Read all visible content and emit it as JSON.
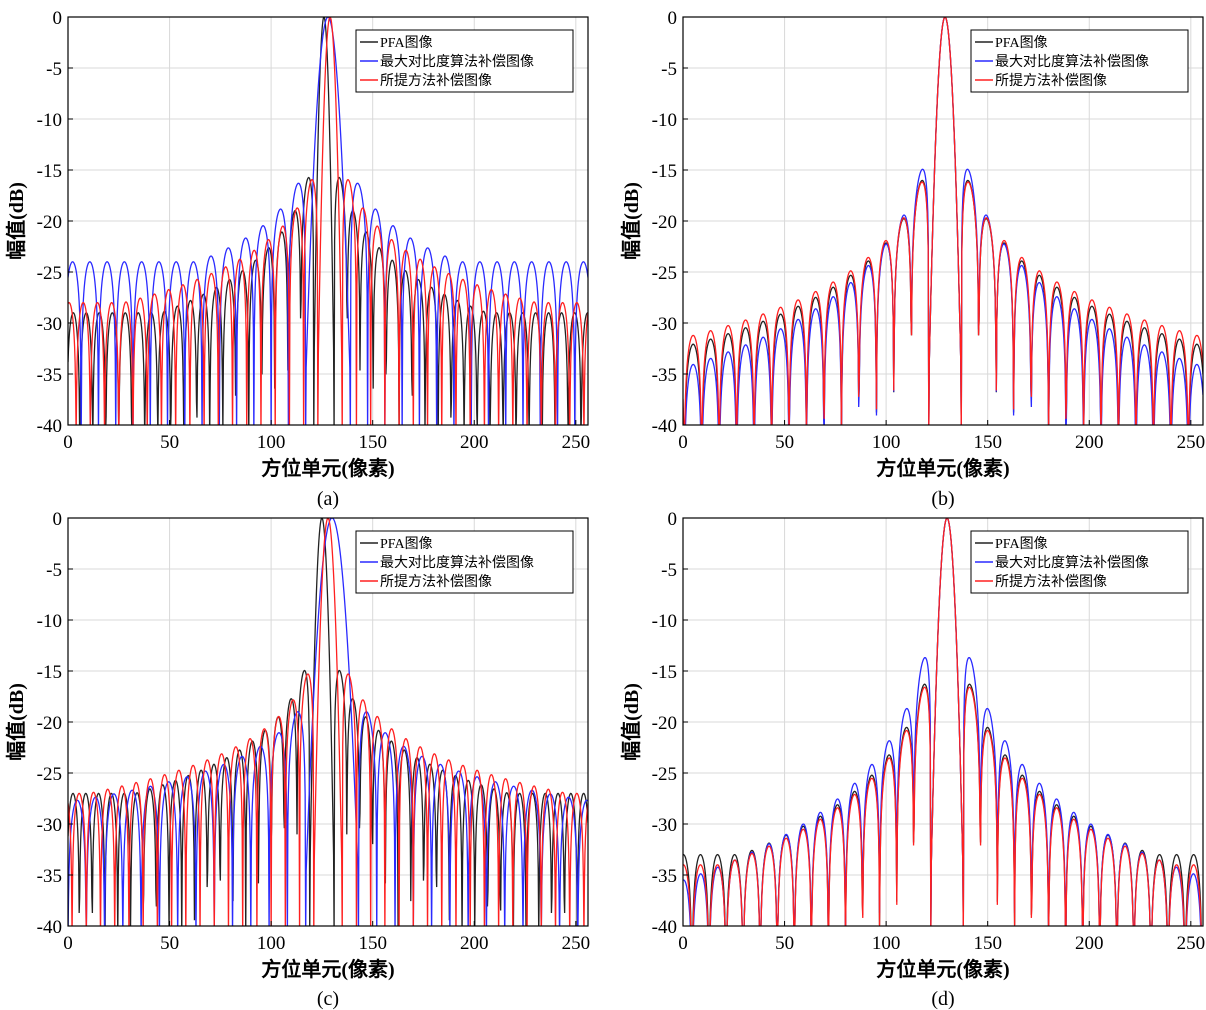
{
  "figure": {
    "panel_labels": [
      "(a)",
      "(b)",
      "(c)",
      "(d)"
    ]
  },
  "colors": {
    "pfa": "#222222",
    "max_contrast": "#2a2aff",
    "proposed": "#ff2020",
    "grid": "#d9d9d9",
    "axes": "#000000"
  },
  "chart_data": [
    {
      "type": "line",
      "panel": "(a)",
      "xlabel": "方位单元(像素)",
      "ylabel": "幅值(dB)",
      "xlim": [
        0,
        256
      ],
      "ylim": [
        -40,
        0
      ],
      "xticks": [
        0,
        50,
        100,
        150,
        200,
        250
      ],
      "yticks": [
        0,
        -5,
        -10,
        -15,
        -20,
        -25,
        -30,
        -35,
        -40
      ],
      "grid": true,
      "legend_position": "top-right",
      "series": [
        {
          "name": "PFA图像",
          "color": "#222222",
          "peak": 126,
          "mainlobe_halfwidth": 5,
          "sidelobe_period": 6.4,
          "first_sidelobe": -13.5,
          "decay": -14,
          "floor": -29
        },
        {
          "name": "最大对比度算法补偿图像",
          "color": "#2a2aff",
          "peak": 128,
          "mainlobe_halfwidth": 11,
          "sidelobe_period": 8.5,
          "first_sidelobe": -14.5,
          "decay": -11,
          "floor": -24
        },
        {
          "name": "所提方法补偿图像",
          "color": "#ff2020",
          "peak": 129,
          "mainlobe_halfwidth": 6,
          "sidelobe_period": 7.0,
          "first_sidelobe": -14.0,
          "decay": -12,
          "floor": -28
        }
      ]
    },
    {
      "type": "line",
      "panel": "(b)",
      "xlabel": "方位单元(像素)",
      "ylabel": "幅值(dB)",
      "xlim": [
        0,
        256
      ],
      "ylim": [
        -40,
        0
      ],
      "xticks": [
        0,
        50,
        100,
        150,
        200,
        250
      ],
      "yticks": [
        0,
        -5,
        -10,
        -15,
        -20,
        -25,
        -30,
        -35,
        -40
      ],
      "grid": true,
      "legend_position": "top-right",
      "series": [
        {
          "name": "PFA图像",
          "color": "#222222",
          "peak": 129,
          "mainlobe_halfwidth": 8,
          "sidelobe_period": 8.6,
          "first_sidelobe": -13.5,
          "decay": -16,
          "floor": -38
        },
        {
          "name": "最大对比度算法补偿图像",
          "color": "#2a2aff",
          "peak": 129,
          "mainlobe_halfwidth": 8,
          "sidelobe_period": 8.6,
          "first_sidelobe": -12.0,
          "decay": -19,
          "floor": -40
        },
        {
          "name": "所提方法补偿图像",
          "color": "#ff2020",
          "peak": 129,
          "mainlobe_halfwidth": 8,
          "sidelobe_period": 8.6,
          "first_sidelobe": -13.8,
          "decay": -15,
          "floor": -35
        }
      ]
    },
    {
      "type": "line",
      "panel": "(c)",
      "xlabel": "方位单元(像素)",
      "ylabel": "幅值(dB)",
      "xlim": [
        0,
        256
      ],
      "ylim": [
        -40,
        0
      ],
      "xticks": [
        0,
        50,
        100,
        150,
        200,
        250
      ],
      "yticks": [
        0,
        -5,
        -10,
        -15,
        -20,
        -25,
        -30,
        -35,
        -40
      ],
      "grid": true,
      "legend_position": "top-right",
      "series": [
        {
          "name": "PFA图像",
          "color": "#222222",
          "peak": 125,
          "mainlobe_halfwidth": 6,
          "sidelobe_period": 6.3,
          "first_sidelobe": -13.0,
          "decay": -12,
          "floor": -27
        },
        {
          "name": "最大对比度算法补偿图像",
          "color": "#2a2aff",
          "peak": 130,
          "mainlobe_halfwidth": 13,
          "sidelobe_period": 9.0,
          "first_sidelobe": -17.5,
          "decay": -9,
          "floor": -28
        },
        {
          "name": "所提方法补偿图像",
          "color": "#ff2020",
          "peak": 128,
          "mainlobe_halfwidth": 7,
          "sidelobe_period": 7.0,
          "first_sidelobe": -13.5,
          "decay": -11,
          "floor": -27
        }
      ]
    },
    {
      "type": "line",
      "panel": "(d)",
      "xlabel": "方位单元(像素)",
      "ylabel": "幅值(dB)",
      "xlim": [
        0,
        256
      ],
      "ylim": [
        -40,
        0
      ],
      "xticks": [
        0,
        50,
        100,
        150,
        200,
        250
      ],
      "yticks": [
        0,
        -5,
        -10,
        -15,
        -20,
        -25,
        -30,
        -35,
        -40
      ],
      "grid": true,
      "legend_position": "top-right",
      "series": [
        {
          "name": "PFA图像",
          "color": "#222222",
          "peak": 130,
          "mainlobe_halfwidth": 8,
          "sidelobe_period": 8.4,
          "first_sidelobe": -13.5,
          "decay": -18,
          "floor": -33
        },
        {
          "name": "最大对比度算法补偿图像",
          "color": "#2a2aff",
          "peak": 130,
          "mainlobe_halfwidth": 8,
          "sidelobe_period": 8.4,
          "first_sidelobe": -10.5,
          "decay": -21,
          "floor": -36
        },
        {
          "name": "所提方法补偿图像",
          "color": "#ff2020",
          "peak": 130,
          "mainlobe_halfwidth": 8,
          "sidelobe_period": 8.4,
          "first_sidelobe": -13.8,
          "decay": -18,
          "floor": -34
        }
      ]
    }
  ]
}
